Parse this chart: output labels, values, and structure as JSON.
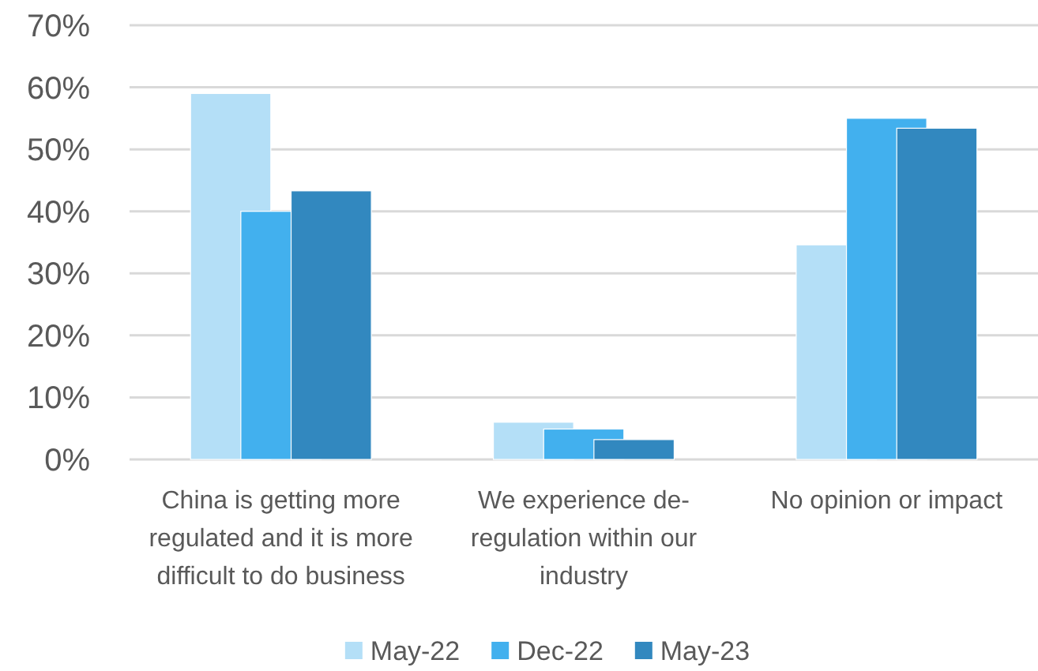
{
  "chart_data": {
    "type": "bar",
    "categories": [
      "China is getting more regulated and it is more difficult to do business",
      "We experience de-regulation within our industry",
      "No opinion or impact"
    ],
    "series": [
      {
        "name": "May-22",
        "color": "#b4dff7",
        "values": [
          59.0,
          6.0,
          34.6
        ]
      },
      {
        "name": "Dec-22",
        "color": "#42b0ee",
        "values": [
          40.0,
          4.9,
          55.0
        ]
      },
      {
        "name": "May-23",
        "color": "#3288bf",
        "values": [
          43.3,
          3.2,
          53.4
        ]
      }
    ],
    "ylim": [
      0,
      70
    ],
    "yticks": [
      {
        "value": 0,
        "label": "0%"
      },
      {
        "value": 10,
        "label": "10%"
      },
      {
        "value": 20,
        "label": "20%"
      },
      {
        "value": 30,
        "label": "30%"
      },
      {
        "value": 40,
        "label": "40%"
      },
      {
        "value": 50,
        "label": "50%"
      },
      {
        "value": 60,
        "label": "60%"
      },
      {
        "value": 70,
        "label": "70%"
      }
    ],
    "grid": "y",
    "legend": "bottom"
  }
}
